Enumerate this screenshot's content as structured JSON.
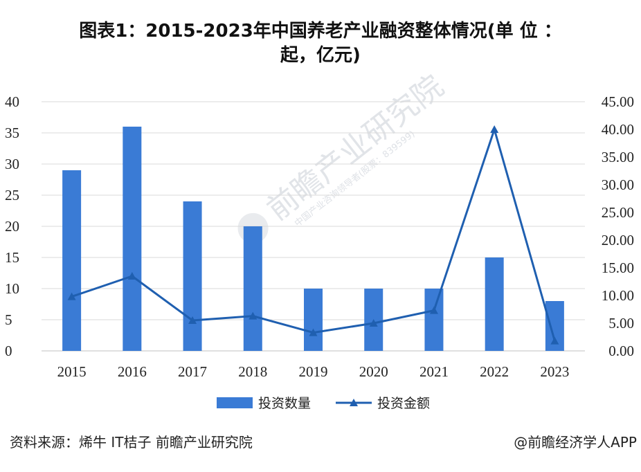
{
  "title_line1": "图表1：2015-2023年中国养老产业融资整体情况(单 位 ：",
  "title_line2": "起，亿元)",
  "watermark": {
    "main": "前瞻产业研究院",
    "sub": "中国产业咨询领导者(股票：839599)"
  },
  "footer": {
    "source": "资料来源：烯牛 IT桔子 前瞻产业研究院",
    "brand": "@前瞻经济学人APP"
  },
  "colors": {
    "bar": "#3a7bd5",
    "line": "#1f5fb0",
    "grid": "#d9d9d9",
    "axis": "#bfbfbf"
  },
  "chart_data": {
    "type": "bar",
    "categories": [
      "2015",
      "2016",
      "2017",
      "2018",
      "2019",
      "2020",
      "2021",
      "2022",
      "2023"
    ],
    "series": [
      {
        "name": "投资数量",
        "type": "bar",
        "axis": "left",
        "values": [
          29,
          36,
          24,
          20,
          10,
          10,
          10,
          15,
          8
        ]
      },
      {
        "name": "投资金额",
        "type": "line",
        "axis": "right",
        "values": [
          9.8,
          13.5,
          5.5,
          6.3,
          3.3,
          5.0,
          7.3,
          40.0,
          1.8
        ]
      }
    ],
    "y_left": {
      "min": 0,
      "max": 40,
      "ticks": [
        "0",
        "5",
        "10",
        "15",
        "20",
        "25",
        "30",
        "35",
        "40"
      ]
    },
    "y_right": {
      "min": 0,
      "max": 45,
      "ticks": [
        "0.00",
        "5.00",
        "10.00",
        "15.00",
        "20.00",
        "25.00",
        "30.00",
        "35.00",
        "40.00",
        "45.00"
      ]
    },
    "grid": true,
    "legend_position": "bottom"
  }
}
